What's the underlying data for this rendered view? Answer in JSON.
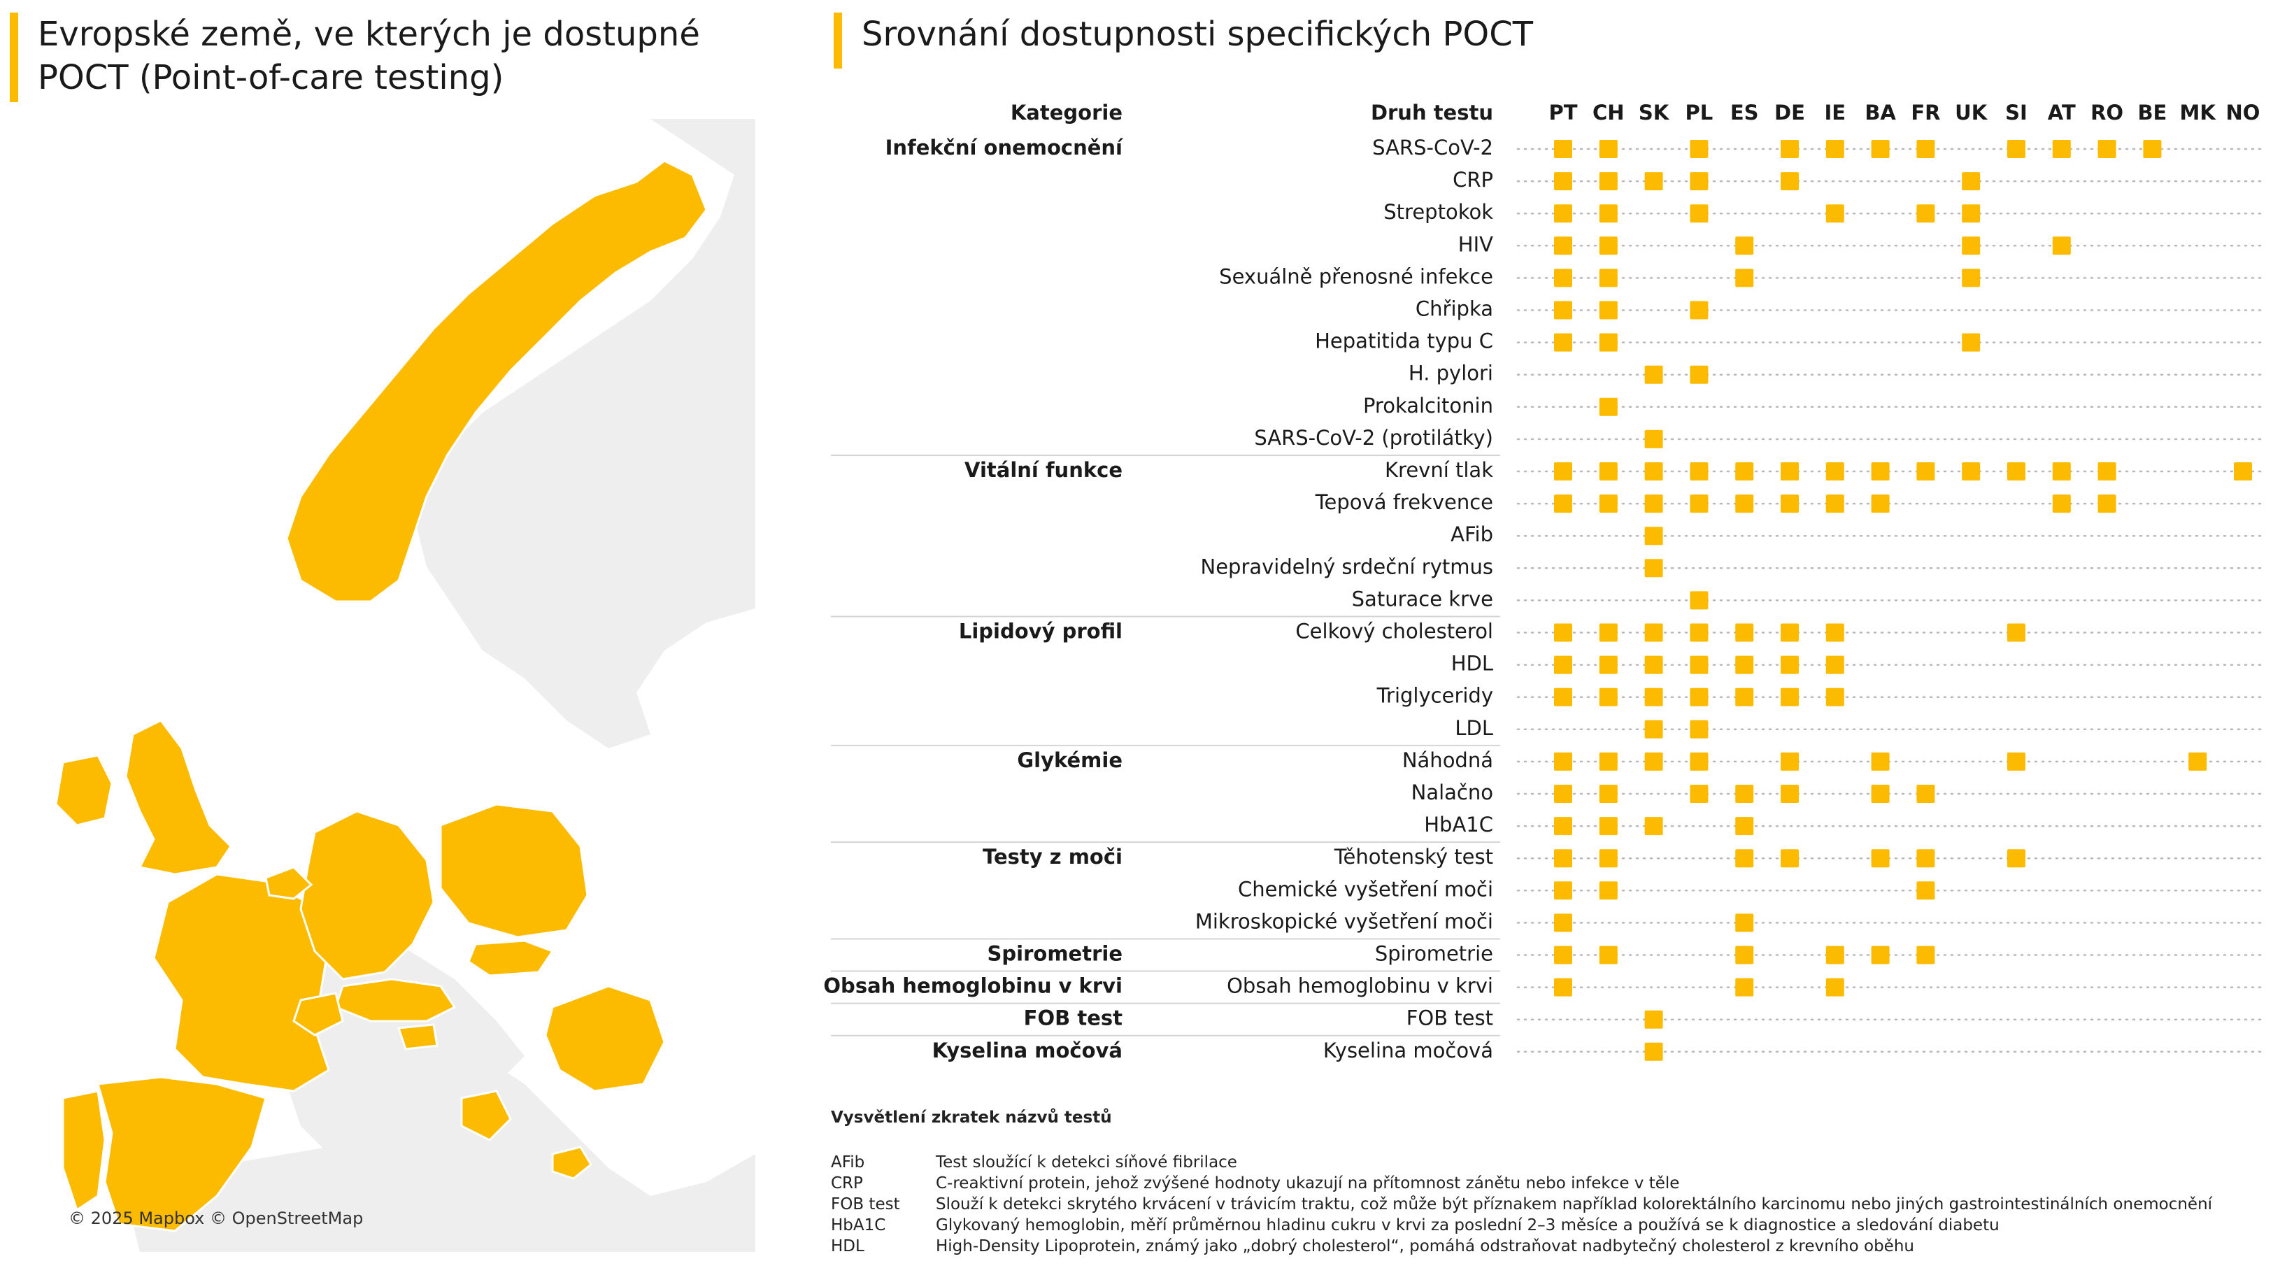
{
  "left_title": "Evropské země, ve kterých je dostupné POCT (Point-of-care testing)",
  "right_title": "Srovnání dostupnosti specifických POCT",
  "map_credit": "© 2025 Mapbox © OpenStreetMap",
  "colors": {
    "accent": "#fdbb00",
    "map_land": "#eeeeee",
    "text": "#1a1a1a",
    "dots": "#b8b8b8"
  },
  "chart_data": {
    "type": "table",
    "category_header": "Kategorie",
    "test_header": "Druh testu",
    "countries": [
      "PT",
      "CH",
      "SK",
      "PL",
      "ES",
      "DE",
      "IE",
      "BA",
      "FR",
      "UK",
      "SI",
      "AT",
      "RO",
      "BE",
      "MK",
      "NO"
    ],
    "rows": [
      {
        "category": "Infekční onemocnění",
        "test": "SARS-CoV-2",
        "available": [
          "PT",
          "CH",
          "PL",
          "DE",
          "IE",
          "BA",
          "FR",
          "SI",
          "AT",
          "RO",
          "BE"
        ]
      },
      {
        "category": "",
        "test": "CRP",
        "available": [
          "PT",
          "CH",
          "SK",
          "PL",
          "DE",
          "UK"
        ]
      },
      {
        "category": "",
        "test": "Streptokok",
        "available": [
          "PT",
          "CH",
          "PL",
          "IE",
          "FR",
          "UK"
        ]
      },
      {
        "category": "",
        "test": "HIV",
        "available": [
          "PT",
          "CH",
          "ES",
          "UK",
          "AT"
        ]
      },
      {
        "category": "",
        "test": "Sexuálně přenosné infekce",
        "available": [
          "PT",
          "CH",
          "ES",
          "UK"
        ]
      },
      {
        "category": "",
        "test": "Chřipka",
        "available": [
          "PT",
          "CH",
          "PL"
        ]
      },
      {
        "category": "",
        "test": "Hepatitida typu C",
        "available": [
          "PT",
          "CH",
          "UK"
        ]
      },
      {
        "category": "",
        "test": "H. pylori",
        "available": [
          "SK",
          "PL"
        ]
      },
      {
        "category": "",
        "test": "Prokalcitonin",
        "available": [
          "CH"
        ]
      },
      {
        "category": "",
        "test": "SARS-CoV-2 (protilátky)",
        "available": [
          "SK"
        ]
      },
      {
        "category": "Vitální funkce",
        "test": "Krevní tlak",
        "available": [
          "PT",
          "CH",
          "SK",
          "PL",
          "ES",
          "DE",
          "IE",
          "BA",
          "FR",
          "UK",
          "SI",
          "AT",
          "RO",
          "NO"
        ]
      },
      {
        "category": "",
        "test": "Tepová frekvence",
        "available": [
          "PT",
          "CH",
          "SK",
          "PL",
          "ES",
          "DE",
          "IE",
          "BA",
          "AT",
          "RO"
        ]
      },
      {
        "category": "",
        "test": "AFib",
        "available": [
          "SK"
        ]
      },
      {
        "category": "",
        "test": "Nepravidelný srdeční rytmus",
        "available": [
          "SK"
        ]
      },
      {
        "category": "",
        "test": "Saturace krve",
        "available": [
          "PL"
        ]
      },
      {
        "category": "Lipidový profil",
        "test": "Celkový cholesterol",
        "available": [
          "PT",
          "CH",
          "SK",
          "PL",
          "ES",
          "DE",
          "IE",
          "SI"
        ]
      },
      {
        "category": "",
        "test": "HDL",
        "available": [
          "PT",
          "CH",
          "SK",
          "PL",
          "ES",
          "DE",
          "IE"
        ]
      },
      {
        "category": "",
        "test": "Triglyceridy",
        "available": [
          "PT",
          "CH",
          "SK",
          "PL",
          "ES",
          "DE",
          "IE"
        ]
      },
      {
        "category": "",
        "test": "LDL",
        "available": [
          "SK",
          "PL"
        ]
      },
      {
        "category": "Glykémie",
        "test": "Náhodná",
        "available": [
          "PT",
          "CH",
          "SK",
          "PL",
          "DE",
          "BA",
          "SI",
          "MK"
        ]
      },
      {
        "category": "",
        "test": "Nalačno",
        "available": [
          "PT",
          "CH",
          "PL",
          "ES",
          "DE",
          "BA",
          "FR"
        ]
      },
      {
        "category": "",
        "test": "HbA1C",
        "available": [
          "PT",
          "CH",
          "SK",
          "ES"
        ]
      },
      {
        "category": "Testy z moči",
        "test": "Těhotenský test",
        "available": [
          "PT",
          "CH",
          "ES",
          "DE",
          "BA",
          "FR",
          "SI"
        ]
      },
      {
        "category": "",
        "test": "Chemické vyšetření moči",
        "available": [
          "PT",
          "CH",
          "FR"
        ]
      },
      {
        "category": "",
        "test": "Mikroskopické vyšetření moči",
        "available": [
          "PT",
          "ES"
        ]
      },
      {
        "category": "Spirometrie",
        "test": "Spirometrie",
        "available": [
          "PT",
          "CH",
          "ES",
          "IE",
          "BA",
          "FR"
        ]
      },
      {
        "category": "Obsah hemoglobinu v krvi",
        "test": "Obsah hemoglobinu v krvi",
        "available": [
          "PT",
          "ES",
          "IE"
        ]
      },
      {
        "category": "FOB test",
        "test": "FOB test",
        "available": [
          "SK"
        ]
      },
      {
        "category": "Kyselina močová",
        "test": "Kyselina močová",
        "available": [
          "SK"
        ]
      }
    ]
  },
  "footnotes": {
    "title": "Vysvětlení zkratek názvů testů",
    "items": [
      {
        "abbr": "AFib",
        "text": "Test sloužící k detekci síňové fibrilace"
      },
      {
        "abbr": "CRP",
        "text": "C-reaktivní protein, jehož zvýšené hodnoty ukazují na přítomnost zánětu nebo infekce v těle"
      },
      {
        "abbr": "FOB test",
        "text": "Slouží k detekci skrytého krvácení v trávicím traktu, což může být příznakem například kolorektálního karcinomu nebo jiných gastrointestinálních onemocnění"
      },
      {
        "abbr": "HbA1C",
        "text": "Glykovaný hemoglobin, měří průměrnou hladinu cukru v krvi za poslední 2–3 měsíce a používá se k diagnostice a sledování diabetu"
      },
      {
        "abbr": "HDL",
        "text": "High-Density Lipoprotein, známý jako „dobrý cholesterol“, pomáhá odstraňovat nadbytečný cholesterol z krevního oběhu"
      }
    ]
  }
}
